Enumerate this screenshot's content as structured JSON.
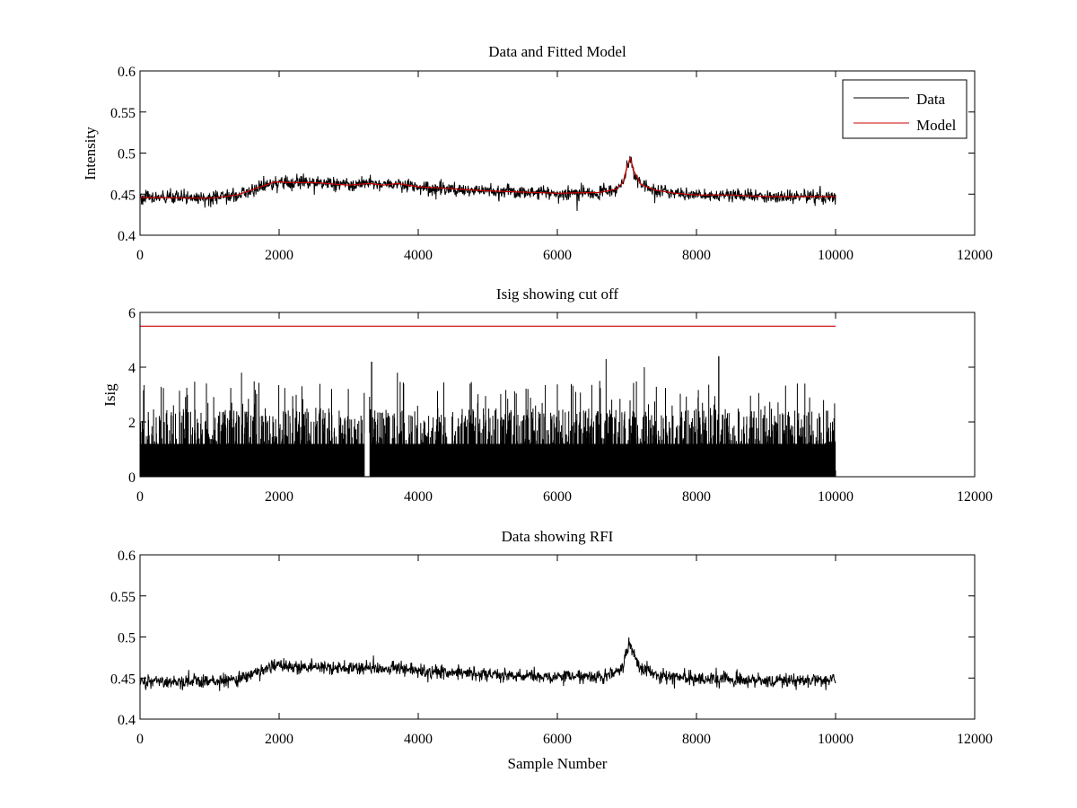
{
  "chart_data": [
    {
      "type": "line",
      "title": "Data and Fitted Model",
      "xlabel": "",
      "ylabel": "Intensity",
      "xlim": [
        0,
        12000
      ],
      "ylim": [
        0.4,
        0.6
      ],
      "xticks": [
        "0",
        "2000",
        "4000",
        "6000",
        "8000",
        "10000",
        "12000"
      ],
      "yticks": [
        "0.4",
        "0.45",
        "0.5",
        "0.55",
        "0.6"
      ],
      "legend_position": "top-right",
      "series": [
        {
          "name": "Data",
          "color": "#000000",
          "style": "noisy",
          "noise": 0.004,
          "x": [
            0,
            1000,
            1400,
            1700,
            1950,
            2200,
            2500,
            3000,
            3300,
            3500,
            3700,
            4000,
            5000,
            6000,
            6600,
            6850,
            6950,
            7000,
            7050,
            7100,
            7200,
            7400,
            7700,
            8000,
            8500,
            9000,
            10000
          ],
          "y": [
            0.446,
            0.445,
            0.449,
            0.458,
            0.465,
            0.464,
            0.464,
            0.461,
            0.463,
            0.461,
            0.463,
            0.459,
            0.454,
            0.451,
            0.452,
            0.456,
            0.465,
            0.483,
            0.494,
            0.478,
            0.462,
            0.455,
            0.451,
            0.449,
            0.449,
            0.447,
            0.447
          ]
        },
        {
          "name": "Model",
          "color": "#cc0000",
          "style": "smooth",
          "x": [
            0,
            1000,
            1400,
            1700,
            1950,
            2200,
            2500,
            3000,
            3300,
            3500,
            3700,
            4000,
            5000,
            6000,
            6600,
            6850,
            6950,
            7000,
            7050,
            7100,
            7200,
            7400,
            7700,
            8000,
            8500,
            9000,
            10000
          ],
          "y": [
            0.446,
            0.445,
            0.449,
            0.458,
            0.465,
            0.464,
            0.464,
            0.461,
            0.463,
            0.461,
            0.463,
            0.459,
            0.454,
            0.451,
            0.452,
            0.456,
            0.465,
            0.483,
            0.494,
            0.478,
            0.462,
            0.455,
            0.451,
            0.449,
            0.449,
            0.447,
            0.447
          ]
        }
      ]
    },
    {
      "type": "line",
      "title": "Isig showing cut off",
      "xlabel": "",
      "ylabel": "Isig",
      "xlim": [
        0,
        12000
      ],
      "ylim": [
        0,
        6
      ],
      "xticks": [
        "0",
        "2000",
        "4000",
        "6000",
        "8000",
        "10000",
        "12000"
      ],
      "yticks": [
        "0",
        "2",
        "4",
        "6"
      ],
      "series": [
        {
          "color": "#000000",
          "style": "spiky",
          "x": [
            0,
            10000
          ],
          "y_range": [
            0,
            2.5
          ],
          "peaks": [
            [
              1460,
              3.8
            ],
            [
              3250,
              4.3
            ],
            [
              3330,
              4.2
            ],
            [
              3700,
              3.8
            ],
            [
              6700,
              4.3
            ],
            [
              7250,
              4.0
            ],
            [
              8320,
              4.4
            ],
            [
              9450,
              3.4
            ],
            [
              9560,
              3.4
            ]
          ],
          "gap": [
            3230,
            3300
          ]
        },
        {
          "color": "#cc0000",
          "style": "flat",
          "x": [
            0,
            10000
          ],
          "y": [
            5.5,
            5.5
          ]
        }
      ]
    },
    {
      "type": "line",
      "title": "Data showing RFI",
      "xlabel": "Sample Number",
      "ylabel": "",
      "xlim": [
        0,
        12000
      ],
      "ylim": [
        0.4,
        0.6
      ],
      "xticks": [
        "0",
        "2000",
        "4000",
        "6000",
        "8000",
        "10000",
        "12000"
      ],
      "yticks": [
        "0.4",
        "0.45",
        "0.5",
        "0.55",
        "0.6"
      ],
      "series": [
        {
          "color": "#000000",
          "style": "noisy",
          "noise": 0.004,
          "x": [
            0,
            1000,
            1400,
            1700,
            1950,
            2200,
            2500,
            3000,
            3300,
            3500,
            3700,
            4000,
            5000,
            6000,
            6600,
            6850,
            6950,
            7000,
            7050,
            7100,
            7200,
            7400,
            7700,
            8000,
            8500,
            9000,
            10000
          ],
          "y": [
            0.446,
            0.445,
            0.449,
            0.458,
            0.465,
            0.464,
            0.464,
            0.461,
            0.463,
            0.461,
            0.463,
            0.459,
            0.454,
            0.451,
            0.452,
            0.456,
            0.465,
            0.483,
            0.494,
            0.478,
            0.462,
            0.455,
            0.451,
            0.449,
            0.449,
            0.447,
            0.447
          ]
        }
      ]
    }
  ]
}
